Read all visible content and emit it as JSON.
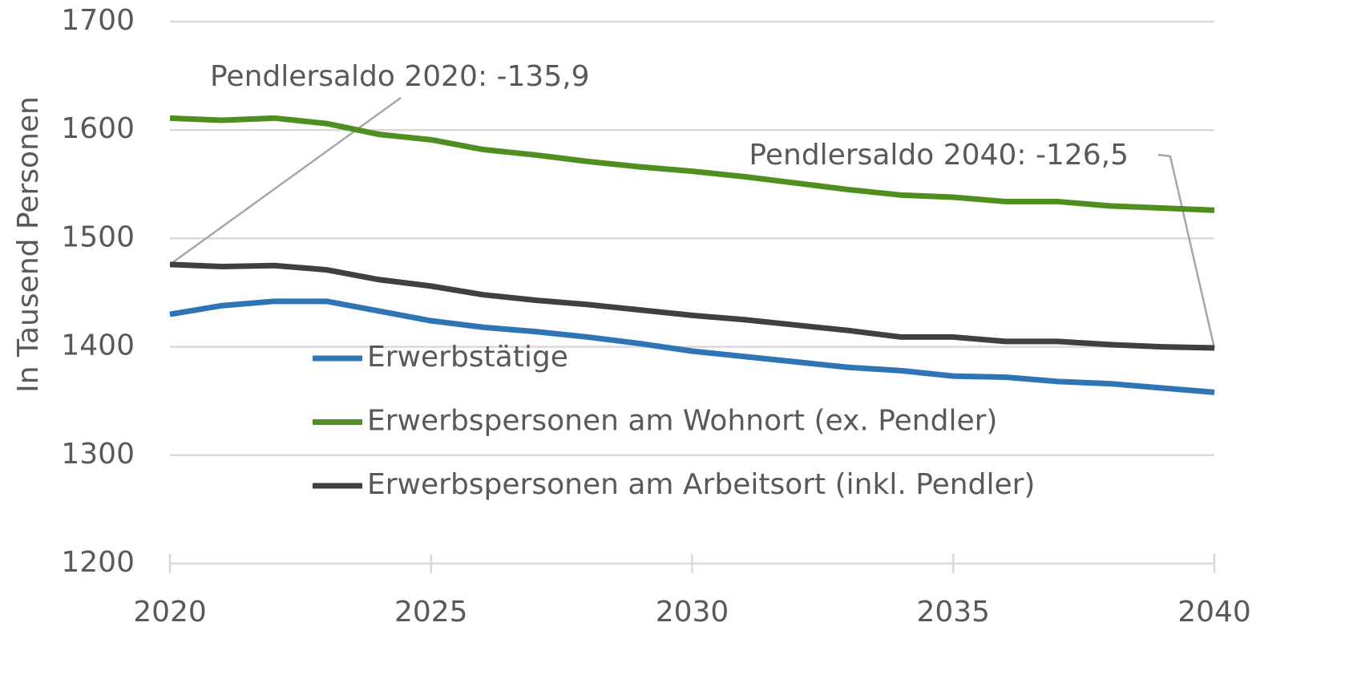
{
  "chart_data": {
    "type": "line",
    "y_label": "In Tausend Personen",
    "x": [
      2020,
      2021,
      2022,
      2023,
      2024,
      2025,
      2026,
      2027,
      2028,
      2029,
      2030,
      2031,
      2032,
      2033,
      2034,
      2035,
      2036,
      2037,
      2038,
      2039,
      2040
    ],
    "series": [
      {
        "name": "Erwerbstätige",
        "color": "#2e75b6",
        "values": [
          1430,
          1438,
          1442,
          1442,
          1433,
          1424,
          1418,
          1414,
          1409,
          1403,
          1396,
          1391,
          1386,
          1381,
          1378,
          1373,
          1372,
          1368,
          1366,
          1362,
          1358
        ]
      },
      {
        "name": "Erwerbspersonen am Wohnort (ex. Pendler)",
        "color": "#4e8f1f",
        "values": [
          1611,
          1609,
          1611,
          1606,
          1596,
          1591,
          1582,
          1577,
          1571,
          1566,
          1562,
          1557,
          1551,
          1545,
          1540,
          1538,
          1534,
          1534,
          1530,
          1528,
          1526
        ]
      },
      {
        "name": "Erwerbspersonen am Arbeitsort (inkl. Pendler)",
        "color": "#404040",
        "values": [
          1476,
          1474,
          1475,
          1471,
          1462,
          1456,
          1448,
          1443,
          1439,
          1434,
          1429,
          1425,
          1420,
          1415,
          1409,
          1409,
          1405,
          1405,
          1402,
          1400,
          1399
        ]
      }
    ],
    "annotations": [
      {
        "text": "Pendlersaldo 2020: -135,9"
      },
      {
        "text": "Pendlersaldo 2040: -126,5"
      }
    ],
    "xlim": [
      2020,
      2040
    ],
    "xticks": [
      2020,
      2025,
      2030,
      2035,
      2040
    ],
    "ylim": [
      1200,
      1700
    ],
    "yticks": [
      1200,
      1300,
      1400,
      1500,
      1600,
      1700
    ],
    "grid": true
  }
}
